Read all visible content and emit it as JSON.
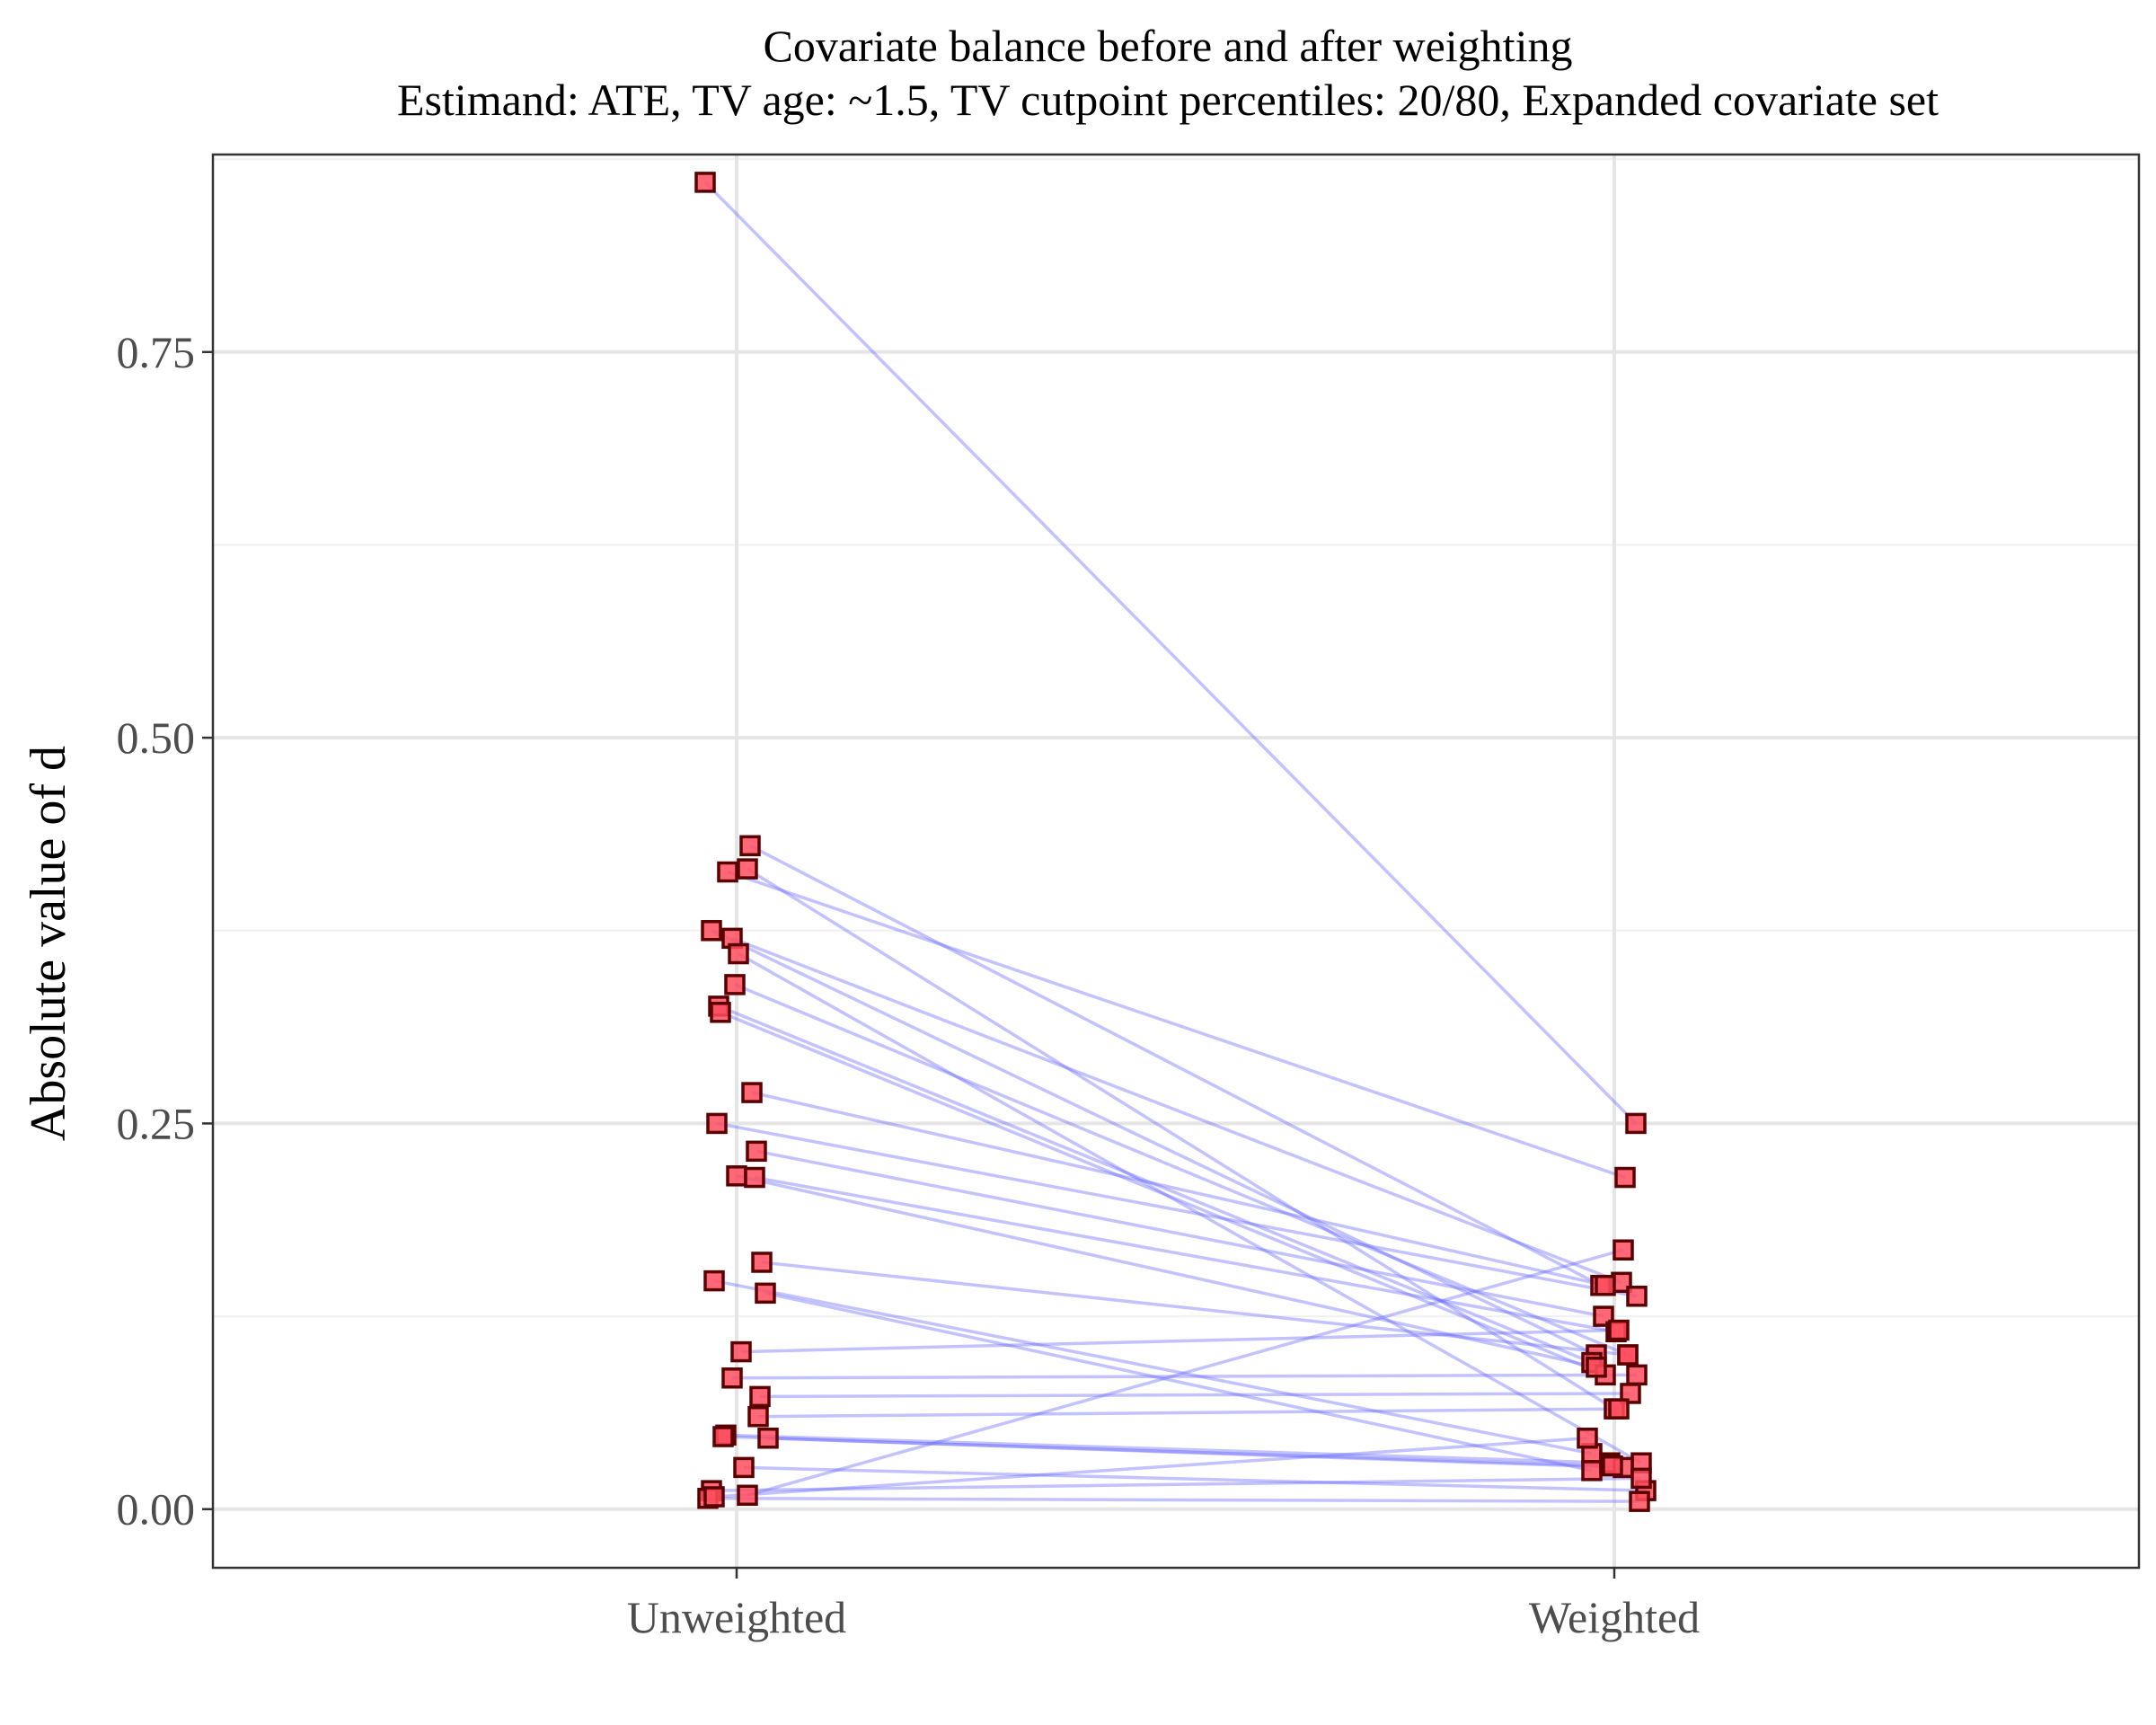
{
  "chart_data": {
    "type": "line",
    "title": "Covariate balance before and after weighting",
    "subtitle": "Estimand: ATE, TV age: ~1.5, TV cutpoint percentiles: 20/80, Expanded covariate set",
    "xlabel": "",
    "ylabel": "Absolute value of d",
    "categories": [
      "Unweighted",
      "Weighted"
    ],
    "ylim": [
      -0.038,
      0.878
    ],
    "yticks": [
      0.0,
      0.25,
      0.5,
      0.75
    ],
    "ytick_labels": [
      "0.00",
      "0.25",
      "0.50",
      "0.75"
    ],
    "grid": true,
    "colors": {
      "point_fill": "#ff4d5e",
      "point_stroke": "#5a0000",
      "line": "#6666ff",
      "grid_major": "#e5e5e5",
      "grid_minor": "#f0f0f0",
      "panel_border": "#333333"
    },
    "series": [
      {
        "unweighted": 0.86,
        "weighted": 0.25
      },
      {
        "unweighted": 0.43,
        "weighted": 0.145
      },
      {
        "unweighted": 0.415,
        "weighted": 0.065
      },
      {
        "unweighted": 0.413,
        "weighted": 0.215
      },
      {
        "unweighted": 0.375,
        "weighted": 0.1
      },
      {
        "unweighted": 0.37,
        "weighted": 0.147
      },
      {
        "unweighted": 0.36,
        "weighted": 0.03
      },
      {
        "unweighted": 0.34,
        "weighted": 0.1
      },
      {
        "unweighted": 0.326,
        "weighted": 0.095
      },
      {
        "unweighted": 0.322,
        "weighted": 0.087
      },
      {
        "unweighted": 0.27,
        "weighted": 0.145
      },
      {
        "unweighted": 0.25,
        "weighted": 0.138
      },
      {
        "unweighted": 0.232,
        "weighted": 0.125
      },
      {
        "unweighted": 0.216,
        "weighted": 0.092
      },
      {
        "unweighted": 0.215,
        "weighted": 0.115
      },
      {
        "unweighted": 0.16,
        "weighted": 0.1
      },
      {
        "unweighted": 0.148,
        "weighted": 0.036
      },
      {
        "unweighted": 0.14,
        "weighted": 0.025
      },
      {
        "unweighted": 0.102,
        "weighted": 0.116
      },
      {
        "unweighted": 0.085,
        "weighted": 0.087
      },
      {
        "unweighted": 0.073,
        "weighted": 0.075
      },
      {
        "unweighted": 0.06,
        "weighted": 0.065
      },
      {
        "unweighted": 0.048,
        "weighted": 0.03
      },
      {
        "unweighted": 0.047,
        "weighted": 0.027
      },
      {
        "unweighted": 0.046,
        "weighted": 0.028
      },
      {
        "unweighted": 0.027,
        "weighted": 0.012
      },
      {
        "unweighted": 0.012,
        "weighted": 0.02
      },
      {
        "unweighted": 0.009,
        "weighted": 0.168
      },
      {
        "unweighted": 0.007,
        "weighted": 0.005
      },
      {
        "unweighted": 0.008,
        "weighted": 0.046
      }
    ]
  }
}
